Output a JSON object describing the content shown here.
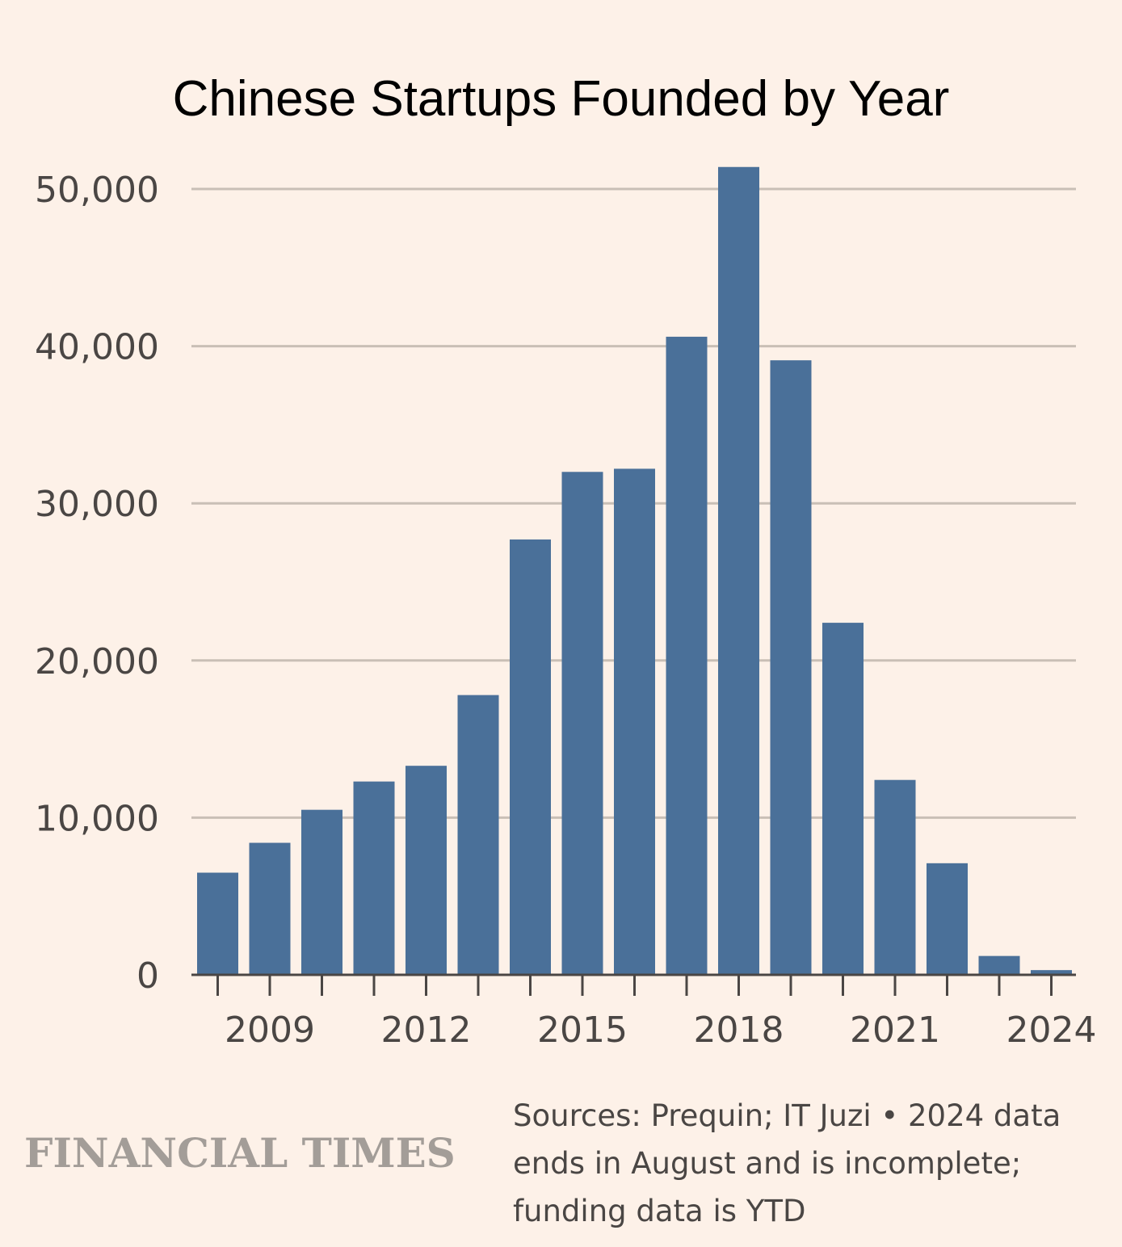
{
  "chart_data": {
    "type": "bar",
    "title": "Chinese Startups Founded by Year",
    "xlabel": "",
    "ylabel": "",
    "categories": [
      "2008",
      "2009",
      "2010",
      "2011",
      "2012",
      "2013",
      "2014",
      "2015",
      "2016",
      "2017",
      "2018",
      "2019",
      "2020",
      "2021",
      "2022",
      "2023",
      "2024"
    ],
    "values": [
      6500,
      8400,
      10500,
      12300,
      13300,
      17800,
      27700,
      32000,
      32200,
      40600,
      51400,
      39100,
      22400,
      12400,
      7100,
      1200,
      300
    ],
    "ylim": [
      0,
      50000
    ],
    "yticks": [
      0,
      10000,
      20000,
      30000,
      40000,
      50000
    ],
    "ytick_labels": [
      "0",
      "10,000",
      "20,000",
      "30,000",
      "40,000",
      "50,000"
    ],
    "xtick_labels": [
      "2009",
      "2012",
      "2015",
      "2018",
      "2021",
      "2024"
    ],
    "grid": true,
    "colors": {
      "bar": "#4a7099",
      "grid": "#c9bfb6",
      "axis": "#4a4644",
      "background": "#fdf1e8"
    }
  },
  "footer": {
    "brand": "FINANCIAL TIMES",
    "source_lines": [
      "Sources: Prequin; IT Juzi • 2024 data",
      "ends in August and is incomplete;",
      "funding data is YTD"
    ]
  }
}
